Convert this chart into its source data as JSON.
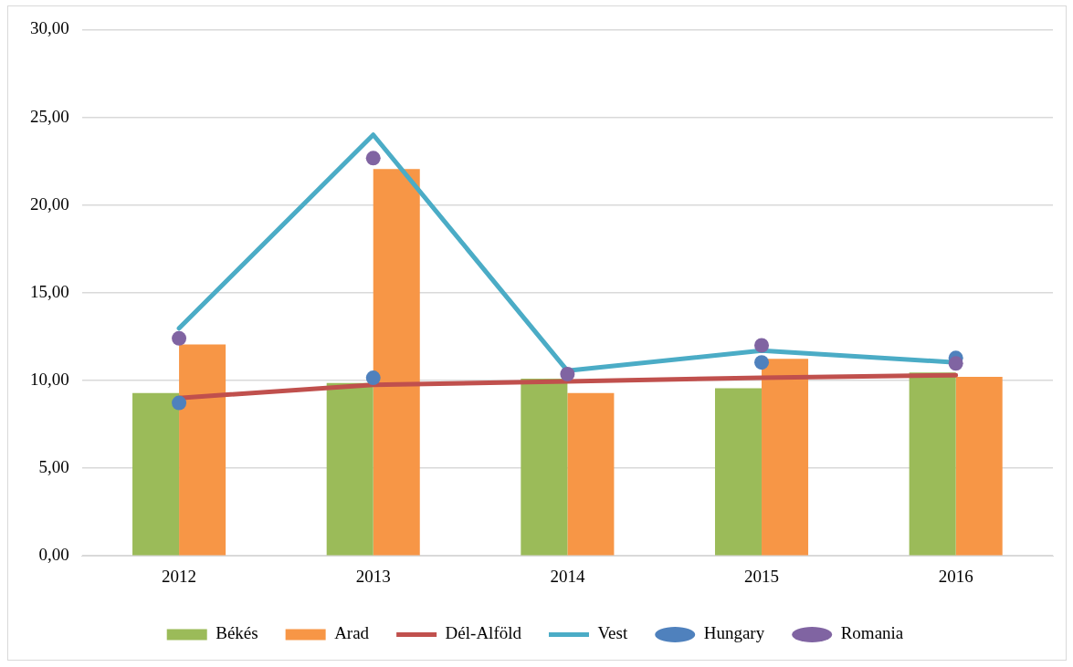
{
  "chart_data": {
    "type": "bar",
    "categories": [
      "2012",
      "2013",
      "2014",
      "2015",
      "2016"
    ],
    "series": [
      {
        "name": "Békés",
        "color": "#9bbb59",
        "values": [
          9.28,
          9.85,
          10.1,
          9.55,
          10.45
        ]
      },
      {
        "name": "Arad",
        "color": "#f79646",
        "values": [
          12.05,
          22.05,
          9.28,
          11.23,
          10.2
        ]
      },
      {
        "name": "Dél-Alföld",
        "type": "line",
        "color": "#c0504d",
        "values": [
          9.0,
          9.75,
          9.95,
          10.15,
          10.3
        ]
      },
      {
        "name": "Vest",
        "type": "line",
        "color": "#4bacc6",
        "values": [
          12.97,
          24.0,
          10.55,
          11.7,
          11.03
        ]
      },
      {
        "name": "Hungary",
        "type": "scatter",
        "marker": "circle",
        "color": "#4f81bd",
        "values": [
          8.72,
          10.15,
          null,
          11.03,
          11.28
        ]
      },
      {
        "name": "Romania",
        "type": "scatter",
        "marker": "circle",
        "color": "#8064a2",
        "values": [
          12.4,
          22.67,
          10.36,
          12.0,
          10.97
        ]
      }
    ],
    "ylim": [
      0,
      30
    ],
    "yticks": [
      {
        "value": 0,
        "label": "0,00"
      },
      {
        "value": 5,
        "label": "5,00"
      },
      {
        "value": 10,
        "label": "10,00"
      },
      {
        "value": 15,
        "label": "15,00"
      },
      {
        "value": 20,
        "label": "20,00"
      },
      {
        "value": 25,
        "label": "25,00"
      },
      {
        "value": 30,
        "label": "30,00"
      }
    ],
    "grid": "y",
    "legend": "bottom"
  }
}
